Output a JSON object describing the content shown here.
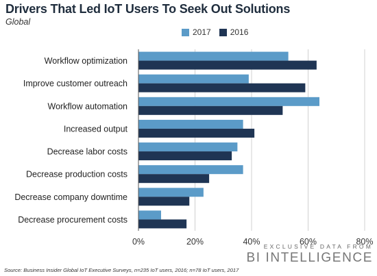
{
  "title": "Drivers That Led IoT Users To Seek Out Solutions",
  "subtitle": "Global",
  "source": "Source: Business Insider Global IoT Executive Surveys, n=235 IoT users, 2016; n=78 IoT users, 2017",
  "brand": {
    "tagline": "EXCLUSIVE DATA FROM",
    "name": "BI INTELLIGENCE"
  },
  "colors": {
    "2017": "#5b9bc8",
    "2016": "#1f3554"
  },
  "chart_data": {
    "type": "bar",
    "orientation": "horizontal",
    "categories": [
      "Workflow optimization",
      "Improve customer outreach",
      "Workflow automation",
      "Increased output",
      "Decrease labor costs",
      "Decrease production costs",
      "Decrease company downtime",
      "Decrease procurement costs"
    ],
    "series": [
      {
        "name": "2017",
        "values": [
          53,
          39,
          64,
          37,
          35,
          37,
          23,
          8
        ]
      },
      {
        "name": "2016",
        "values": [
          63,
          59,
          51,
          41,
          33,
          25,
          18,
          17
        ]
      }
    ],
    "xlim": [
      0,
      80
    ],
    "xticks": [
      "0%",
      "20%",
      "40%",
      "60%",
      "80%"
    ],
    "xgrid": true,
    "legend": "top"
  }
}
